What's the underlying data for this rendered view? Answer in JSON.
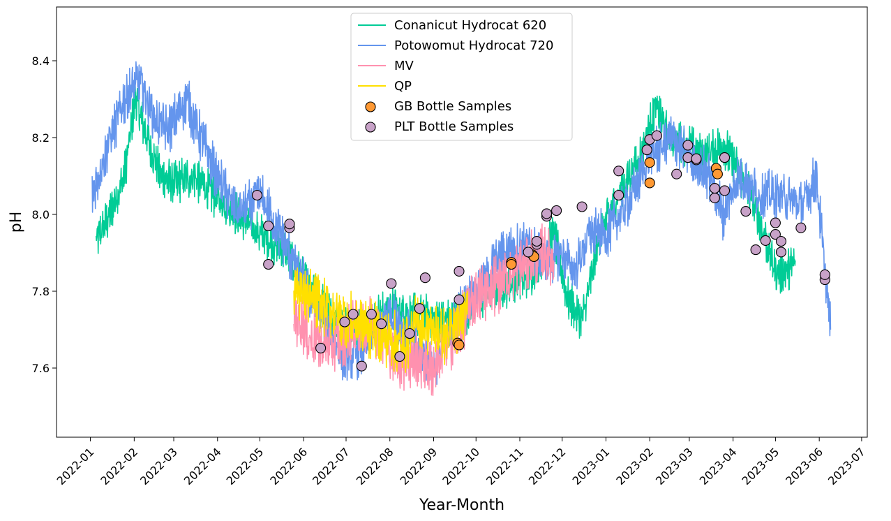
{
  "chart_data": {
    "type": "line",
    "title": "",
    "xlabel": "Year-Month",
    "ylabel": "pH",
    "x_range": [
      "2021-12-08",
      "2023-07-05"
    ],
    "ylim": [
      7.42,
      8.54
    ],
    "grid": false,
    "legend_position": "upper-center",
    "x_ticks": [
      "2022-01",
      "2022-02",
      "2022-03",
      "2022-04",
      "2022-05",
      "2022-06",
      "2022-07",
      "2022-08",
      "2022-09",
      "2022-10",
      "2022-11",
      "2022-12",
      "2023-01",
      "2023-02",
      "2023-03",
      "2023-04",
      "2023-05",
      "2023-06",
      "2023-07"
    ],
    "y_ticks": [
      "7.6",
      "7.8",
      "8.0",
      "8.2",
      "8.4"
    ],
    "series": [
      {
        "name": "Conanicut Hydrocat 620",
        "kind": "line",
        "color": "#00cc96",
        "noise": 0.045,
        "x": [
          "2022-01-05",
          "2022-01-15",
          "2022-01-25",
          "2022-02-02",
          "2022-02-10",
          "2022-02-20",
          "2022-03-01",
          "2022-03-15",
          "2022-03-30",
          "2022-04-15",
          "2022-05-01",
          "2022-05-20",
          "2022-06-05",
          "2022-06-25",
          "2022-07-10",
          "2022-08-01",
          "2022-08-20",
          "2022-09-10",
          "2022-09-25",
          "2022-10-10",
          "2022-10-25",
          "2022-11-10",
          "2022-11-25",
          "2022-12-05",
          "2022-12-15",
          "2022-12-28",
          "2023-01-10",
          "2023-01-25",
          "2023-02-05",
          "2023-02-15",
          "2023-02-28",
          "2023-03-10",
          "2023-03-25",
          "2023-04-10",
          "2023-04-20",
          "2023-05-01",
          "2023-05-10",
          "2023-05-15"
        ],
        "y": [
          7.93,
          8.0,
          8.1,
          8.3,
          8.2,
          8.1,
          8.08,
          8.1,
          8.05,
          8.0,
          7.95,
          7.9,
          7.8,
          7.72,
          7.7,
          7.76,
          7.74,
          7.72,
          7.75,
          7.8,
          7.82,
          7.85,
          7.95,
          7.78,
          7.72,
          7.95,
          8.05,
          8.15,
          8.28,
          8.2,
          8.18,
          8.15,
          8.18,
          8.08,
          7.98,
          7.85,
          7.85,
          7.88
        ]
      },
      {
        "name": "Potowomut Hydrocat 720",
        "kind": "line",
        "color": "#6495ed",
        "noise": 0.05,
        "x": [
          "2022-01-02",
          "2022-01-15",
          "2022-01-25",
          "2022-02-05",
          "2022-02-15",
          "2022-02-25",
          "2022-03-10",
          "2022-03-20",
          "2022-04-01",
          "2022-04-15",
          "2022-05-01",
          "2022-05-15",
          "2022-06-01",
          "2022-06-15",
          "2022-07-01",
          "2022-07-15",
          "2022-08-01",
          "2022-08-15",
          "2022-09-01",
          "2022-09-20",
          "2022-10-05",
          "2022-10-20",
          "2022-11-05",
          "2022-11-20",
          "2022-12-01",
          "2022-12-10",
          "2022-12-20",
          "2023-01-01",
          "2023-01-15",
          "2023-02-01",
          "2023-02-15",
          "2023-03-01",
          "2023-03-15",
          "2023-03-25",
          "2023-04-05",
          "2023-04-20",
          "2023-05-05",
          "2023-05-20",
          "2023-05-30",
          "2023-06-05",
          "2023-06-09"
        ],
        "y": [
          8.05,
          8.2,
          8.3,
          8.35,
          8.25,
          8.22,
          8.3,
          8.2,
          8.1,
          8.0,
          8.05,
          7.95,
          7.82,
          7.72,
          7.62,
          7.65,
          7.75,
          7.68,
          7.6,
          7.75,
          7.82,
          7.9,
          7.92,
          7.88,
          7.9,
          7.85,
          7.95,
          7.95,
          8.02,
          8.15,
          8.2,
          8.15,
          8.1,
          8.0,
          8.1,
          8.05,
          8.05,
          8.02,
          8.1,
          7.85,
          7.7
        ]
      },
      {
        "name": "MV",
        "kind": "line",
        "color": "#ff91af",
        "noise": 0.06,
        "x": [
          "2022-05-25",
          "2022-06-05",
          "2022-06-20",
          "2022-07-05",
          "2022-07-20",
          "2022-08-05",
          "2022-08-20",
          "2022-09-01",
          "2022-09-15",
          "2022-09-30",
          "2022-10-15",
          "2022-11-01",
          "2022-11-15",
          "2022-11-25"
        ],
        "y": [
          7.75,
          7.68,
          7.65,
          7.7,
          7.72,
          7.62,
          7.62,
          7.6,
          7.68,
          7.78,
          7.82,
          7.86,
          7.9,
          7.88
        ]
      },
      {
        "name": "QP",
        "kind": "line",
        "color": "#ffe000",
        "noise": 0.06,
        "x": [
          "2022-05-25",
          "2022-06-05",
          "2022-06-20",
          "2022-07-05",
          "2022-07-20",
          "2022-08-01",
          "2022-08-10",
          "2022-08-20",
          "2022-09-01",
          "2022-09-10",
          "2022-09-20",
          "2022-09-25"
        ],
        "y": [
          7.82,
          7.78,
          7.75,
          7.72,
          7.7,
          7.68,
          7.65,
          7.72,
          7.7,
          7.68,
          7.72,
          7.8
        ]
      },
      {
        "name": "GB Bottle Samples",
        "kind": "scatter",
        "color": "#ff9933",
        "x": [
          "2022-09-18",
          "2022-09-19",
          "2022-10-26",
          "2022-10-26",
          "2022-11-10",
          "2022-11-11",
          "2023-02-01",
          "2023-02-01",
          "2023-03-20",
          "2023-03-21"
        ],
        "y": [
          7.665,
          7.66,
          7.875,
          7.87,
          7.895,
          7.89,
          8.135,
          8.082,
          8.12,
          8.105
        ]
      },
      {
        "name": "PLT Bottle Samples",
        "kind": "scatter",
        "color": "#c8a2c8",
        "x": [
          "2022-04-29",
          "2022-05-07",
          "2022-05-07",
          "2022-05-22",
          "2022-05-22",
          "2022-06-13",
          "2022-06-30",
          "2022-07-06",
          "2022-07-12",
          "2022-07-19",
          "2022-07-26",
          "2022-08-02",
          "2022-08-08",
          "2022-08-15",
          "2022-08-22",
          "2022-08-26",
          "2022-09-19",
          "2022-09-19",
          "2022-11-07",
          "2022-11-13",
          "2022-11-13",
          "2022-11-20",
          "2022-11-20",
          "2022-11-27",
          "2022-12-15",
          "2023-01-10",
          "2023-01-10",
          "2023-01-30",
          "2023-02-01",
          "2023-02-06",
          "2023-02-20",
          "2023-02-28",
          "2023-02-28",
          "2023-03-06",
          "2023-03-06",
          "2023-03-19",
          "2023-03-19",
          "2023-03-26",
          "2023-03-26",
          "2023-04-10",
          "2023-04-17",
          "2023-04-24",
          "2023-05-01",
          "2023-05-01",
          "2023-05-05",
          "2023-05-05",
          "2023-05-19",
          "2023-06-05",
          "2023-06-05"
        ],
        "y": [
          8.05,
          7.87,
          7.97,
          7.965,
          7.975,
          7.652,
          7.72,
          7.74,
          7.605,
          7.74,
          7.715,
          7.82,
          7.63,
          7.69,
          7.755,
          7.835,
          7.778,
          7.852,
          7.902,
          7.922,
          7.93,
          7.995,
          8.002,
          8.01,
          8.02,
          8.05,
          8.113,
          8.168,
          8.195,
          8.205,
          8.105,
          8.148,
          8.18,
          8.142,
          8.145,
          8.043,
          8.068,
          8.062,
          8.148,
          8.008,
          7.908,
          7.932,
          7.948,
          7.978,
          7.902,
          7.93,
          7.965,
          7.83,
          7.843
        ]
      }
    ]
  }
}
